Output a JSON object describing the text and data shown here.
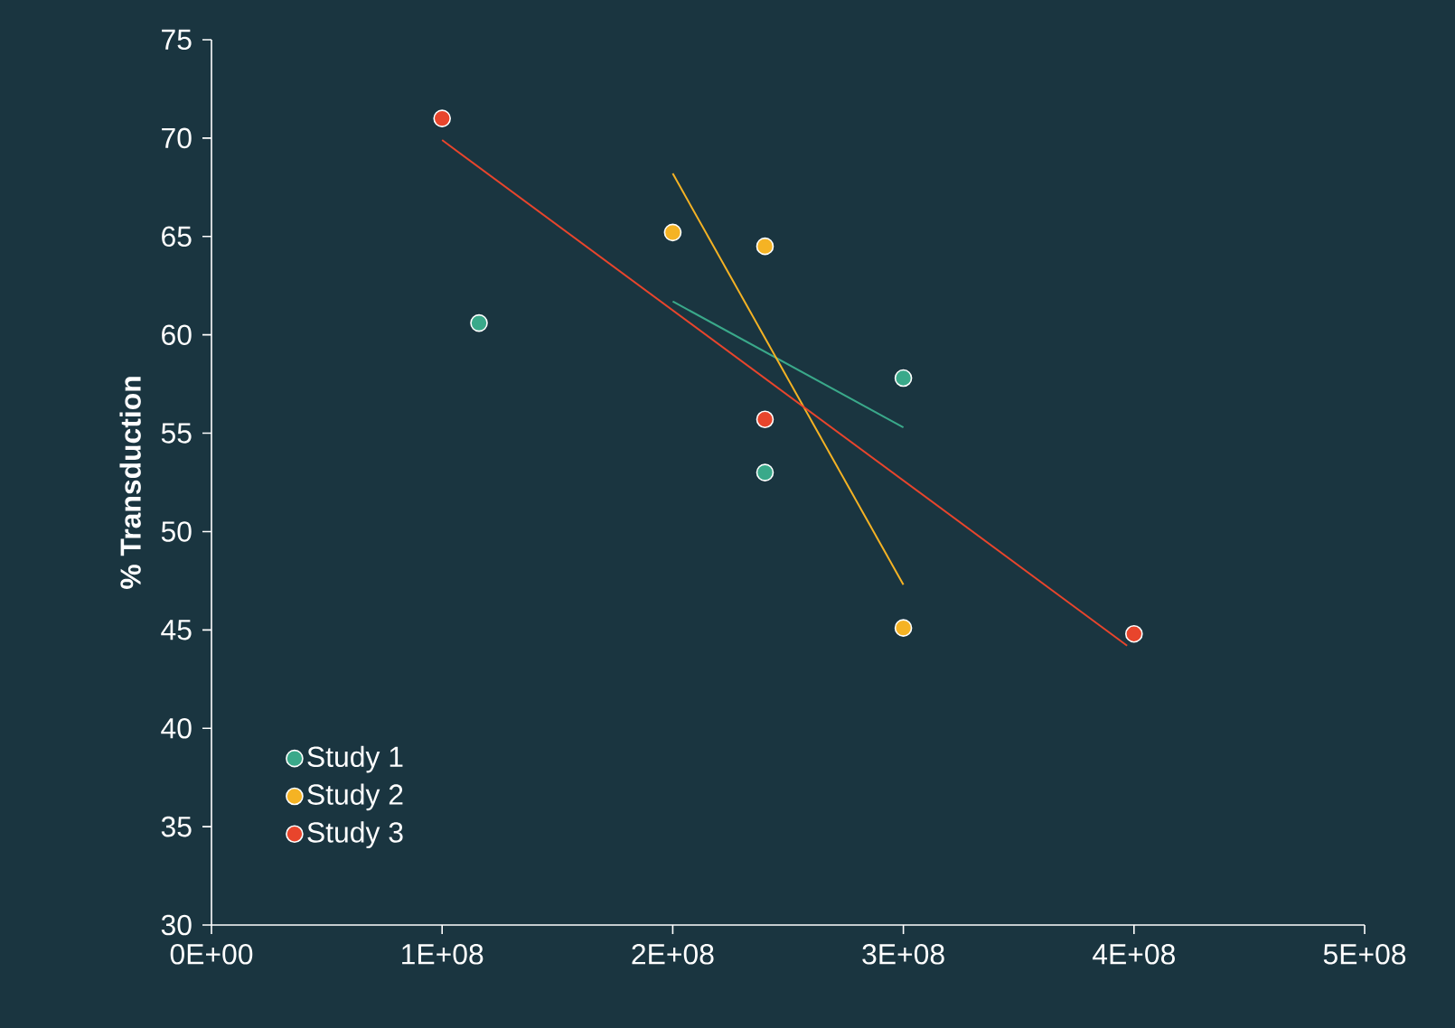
{
  "chart_data": {
    "type": "scatter",
    "ylabel": "% Transduction",
    "legend": "bottom left",
    "xlim": [
      0,
      500000000
    ],
    "ylim": [
      30,
      75
    ],
    "xticks": [
      {
        "value": 0,
        "label": "0E+00"
      },
      {
        "value": 100000000,
        "label": "1E+08"
      },
      {
        "value": 200000000,
        "label": "2E+08"
      },
      {
        "value": 300000000,
        "label": "3E+08"
      },
      {
        "value": 400000000,
        "label": "4E+08"
      },
      {
        "value": 500000000,
        "label": "5E+08"
      }
    ],
    "yticks": [
      30,
      35,
      40,
      45,
      50,
      55,
      60,
      65,
      70,
      75
    ],
    "series": [
      {
        "name": "Study 1",
        "marker": "circle",
        "color": "#3aa98a",
        "x": [
          116000000,
          240000000,
          300000000
        ],
        "values": [
          60.6,
          53,
          57.8
        ]
      },
      {
        "name": "Study 2",
        "marker": "circle",
        "color": "#f5b324",
        "x": [
          200000000,
          240000000,
          300000000
        ],
        "values": [
          65.2,
          64.5,
          45.1
        ]
      },
      {
        "name": "Study 3",
        "marker": "circle",
        "color": "#e8452c",
        "x": [
          100000000,
          240000000,
          400000000
        ],
        "values": [
          71,
          55.7,
          44.8
        ]
      },
      {
        "type": "line",
        "marker": "none",
        "color": "#3aa98a",
        "x": [
          200000000,
          300000000
        ],
        "values": [
          61.7,
          55.3
        ]
      },
      {
        "type": "line",
        "marker": "none",
        "color": "#f5b324",
        "x": [
          200000000,
          300000000
        ],
        "values": [
          68.2,
          47.3
        ]
      },
      {
        "type": "line",
        "marker": "none",
        "color": "#e8452c",
        "x": [
          100000000,
          397000000
        ],
        "values": [
          69.9,
          44.2
        ]
      }
    ]
  }
}
